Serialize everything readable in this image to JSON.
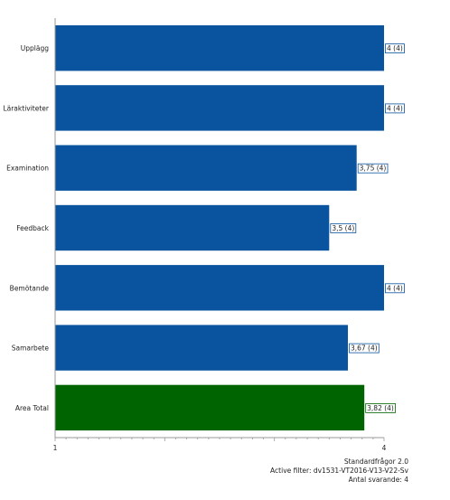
{
  "chart_data": {
    "type": "bar",
    "orientation": "horizontal",
    "categories": [
      "Upplägg",
      "Läraktiviteter",
      "Examination",
      "Feedback",
      "Bemötande",
      "Samarbete",
      "Area Total"
    ],
    "values": [
      4,
      4,
      3.75,
      3.5,
      4,
      3.67,
      3.82
    ],
    "data_labels": [
      "4 (4)",
      "4 (4)",
      "3,75 (4)",
      "3,5 (4)",
      "4 (4)",
      "3,67 (4)",
      "3,82 (4)"
    ],
    "bar_colors": [
      "#0a539e",
      "#0a539e",
      "#0a539e",
      "#0a539e",
      "#0a539e",
      "#0a539e",
      "#006400"
    ],
    "xlim": [
      1,
      4
    ],
    "x_tick_labels": [
      "1",
      "4"
    ],
    "grid": false
  },
  "footer": {
    "line1": "Standardfrågor 2.0",
    "line2": "Active filter: dv1531-VT2016-V13-V22-Sv",
    "line3": "Antal svarande: 4"
  }
}
